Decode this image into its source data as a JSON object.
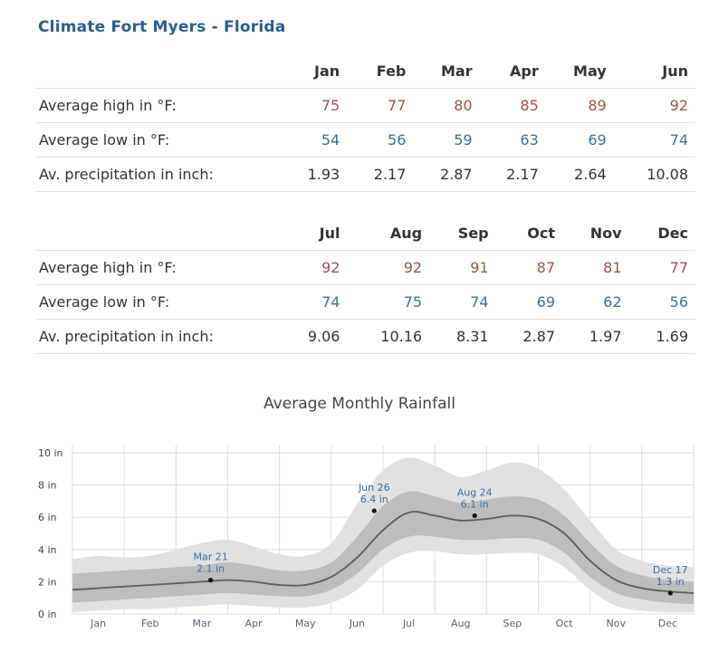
{
  "page": {
    "title": "Climate Fort Myers - Florida"
  },
  "table": {
    "row_labels": {
      "high": "Average high in °F:",
      "low": "Average low in °F:",
      "precip": "Av. precipitation in inch:"
    },
    "months_1": [
      "Jan",
      "Feb",
      "Mar",
      "Apr",
      "May",
      "Jun"
    ],
    "high_1": [
      "75",
      "77",
      "80",
      "85",
      "89",
      "92"
    ],
    "low_1": [
      "54",
      "56",
      "59",
      "63",
      "69",
      "74"
    ],
    "precip_1": [
      "1.93",
      "2.17",
      "2.87",
      "2.17",
      "2.64",
      "10.08"
    ],
    "months_2": [
      "Jul",
      "Aug",
      "Sep",
      "Oct",
      "Nov",
      "Dec"
    ],
    "high_2": [
      "92",
      "92",
      "91",
      "87",
      "81",
      "77"
    ],
    "low_2": [
      "74",
      "75",
      "74",
      "69",
      "62",
      "56"
    ],
    "precip_2": [
      "9.06",
      "10.16",
      "8.31",
      "2.87",
      "1.97",
      "1.69"
    ]
  },
  "chart_data": {
    "type": "area",
    "title": "Average Monthly Rainfall",
    "y_unit": "in",
    "ylim": [
      0,
      10
    ],
    "yticks": [
      "0 in",
      "2 in",
      "4 in",
      "6 in",
      "8 in",
      "10 in"
    ],
    "ytick_values": [
      0,
      2,
      4,
      6,
      8,
      10
    ],
    "categories": [
      "Jan",
      "Feb",
      "Mar",
      "Apr",
      "May",
      "Jun",
      "Jul",
      "Aug",
      "Sep",
      "Oct",
      "Nov",
      "Dec"
    ],
    "grid": true,
    "x": [
      0,
      0.5,
      1,
      1.5,
      2,
      2.5,
      3,
      3.5,
      4,
      4.5,
      5,
      5.5,
      6,
      6.5,
      7,
      7.5,
      8,
      8.5,
      9,
      9.5,
      10,
      10.5,
      11,
      11.5,
      12
    ],
    "series": [
      {
        "values": [
          1.5,
          1.6,
          1.7,
          1.8,
          1.9,
          2.0,
          2.1,
          2.0,
          1.8,
          1.8,
          2.3,
          3.5,
          5.2,
          6.3,
          6.1,
          5.8,
          5.9,
          6.1,
          5.9,
          5.0,
          3.3,
          2.1,
          1.6,
          1.4,
          1.3
        ]
      }
    ],
    "band_inner": {
      "low": [
        0.7,
        0.8,
        0.9,
        1.0,
        1.1,
        1.2,
        1.3,
        1.2,
        1.1,
        1.1,
        1.5,
        2.5,
        4.0,
        4.8,
        4.8,
        4.6,
        4.6,
        4.7,
        4.6,
        3.8,
        2.3,
        1.3,
        0.9,
        0.7,
        0.6
      ],
      "high": [
        2.5,
        2.6,
        2.7,
        2.8,
        2.9,
        3.0,
        3.2,
        3.0,
        2.7,
        2.7,
        3.2,
        4.8,
        6.7,
        7.6,
        7.3,
        6.9,
        7.1,
        7.3,
        7.1,
        6.1,
        4.4,
        3.0,
        2.4,
        2.1,
        2.0
      ]
    },
    "band_outer": {
      "low": [
        0.1,
        0.2,
        0.3,
        0.3,
        0.4,
        0.5,
        0.6,
        0.5,
        0.4,
        0.4,
        0.7,
        1.5,
        3.0,
        3.8,
        3.9,
        3.7,
        3.7,
        3.8,
        3.7,
        2.9,
        1.5,
        0.5,
        0.2,
        0.1,
        0.1
      ],
      "high": [
        3.4,
        3.6,
        3.5,
        3.6,
        4.0,
        4.4,
        4.6,
        4.2,
        3.7,
        3.6,
        4.4,
        6.8,
        8.9,
        9.7,
        9.2,
        8.5,
        8.9,
        9.4,
        9.0,
        7.7,
        5.8,
        4.0,
        3.3,
        3.0,
        2.9
      ]
    },
    "annotations": [
      {
        "label": "Mar 21",
        "value_label": "2.1 in",
        "x": 2.67,
        "y": 2.1
      },
      {
        "label": "Jun 26",
        "value_label": "6.4 in",
        "x": 5.83,
        "y": 6.4
      },
      {
        "label": "Aug 24",
        "value_label": "6.1 in",
        "x": 7.77,
        "y": 6.1
      },
      {
        "label": "Dec 17",
        "value_label": "1.3 in",
        "x": 11.55,
        "y": 1.3
      }
    ],
    "colors": {
      "outer_band": "#e1e1e1",
      "inner_band": "#bdbdbd",
      "line": "#56605a",
      "annotation_text": "#3b6ea3",
      "grid": "#dddddd"
    }
  }
}
